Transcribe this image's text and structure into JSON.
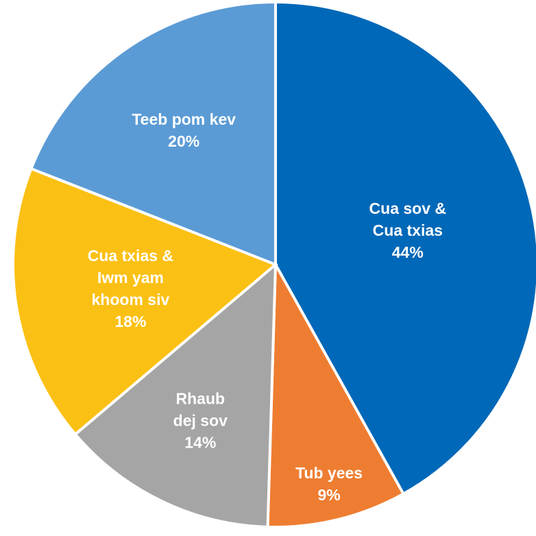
{
  "chart_data": {
    "type": "pie",
    "title": "",
    "start_angle_deg": 0,
    "direction": "clockwise",
    "slices": [
      {
        "label": [
          "Cua sov &",
          "Cua txias"
        ],
        "percent_label": "44%",
        "value": 44,
        "color": "#0068b8"
      },
      {
        "label": [
          "Tub yees"
        ],
        "percent_label": "9%",
        "value": 9,
        "color": "#ee7d31"
      },
      {
        "label": [
          "Rhaub",
          "dej sov"
        ],
        "percent_label": "14%",
        "value": 14,
        "color": "#a5a5a5"
      },
      {
        "label": [
          "Cua txias &",
          "Iwm yam",
          "khoom siv"
        ],
        "percent_label": "18%",
        "value": 18,
        "color": "#fbc014"
      },
      {
        "label": [
          "Teeb pom kev"
        ],
        "percent_label": "20%",
        "value": 20,
        "color": "#5b9bd5"
      }
    ]
  }
}
